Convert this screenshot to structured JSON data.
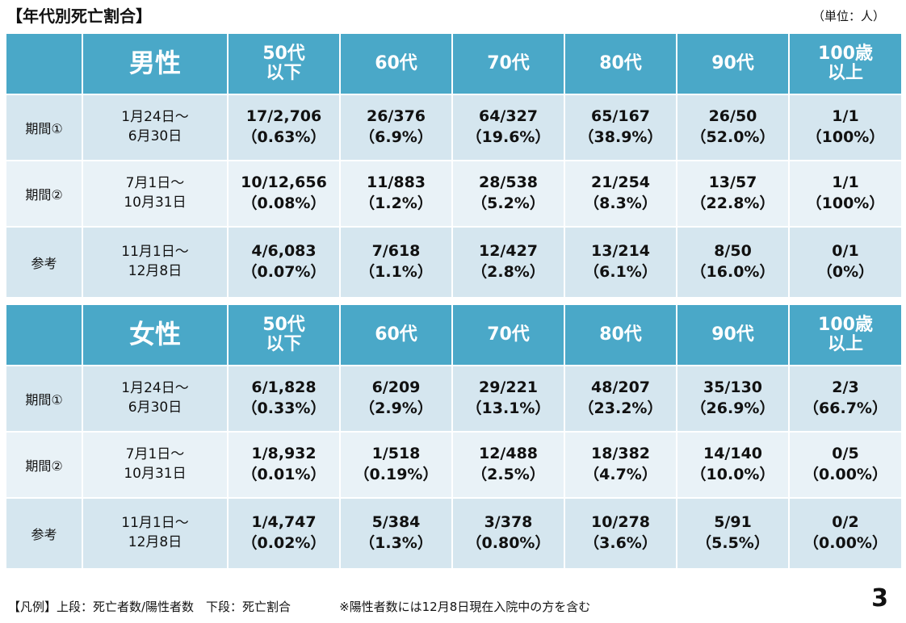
{
  "title": "【年代別死亡割合】",
  "unit": "（単位：人）",
  "headers": [
    "50代\n以下",
    "60代",
    "70代",
    "80代",
    "90代",
    "100歳\n以上"
  ],
  "sections": [
    {
      "gender": "男性",
      "rows": [
        {
          "label": "期間①",
          "period": "1月24日～\n6月30日",
          "cells": [
            "17/2,706\n（0.63%）",
            "26/376\n（6.9%）",
            "64/327\n（19.6%）",
            "65/167\n（38.9%）",
            "26/50\n（52.0%）",
            "1/1\n（100%）"
          ]
        },
        {
          "label": "期間②",
          "period": "7月1日～\n10月31日",
          "cells": [
            "10/12,656\n（0.08%）",
            "11/883\n（1.2%）",
            "28/538\n（5.2%）",
            "21/254\n（8.3%）",
            "13/57\n（22.8%）",
            "1/1\n（100%）"
          ]
        },
        {
          "label": "参考",
          "period": "11月1日～\n12月8日",
          "cells": [
            "4/6,083\n（0.07%）",
            "7/618\n（1.1%）",
            "12/427\n（2.8%）",
            "13/214\n（6.1%）",
            "8/50\n（16.0%）",
            "0/1\n（0%）"
          ]
        }
      ]
    },
    {
      "gender": "女性",
      "rows": [
        {
          "label": "期間①",
          "period": "1月24日～\n6月30日",
          "cells": [
            "6/1,828\n（0.33%）",
            "6/209\n（2.9%）",
            "29/221\n（13.1%）",
            "48/207\n（23.2%）",
            "35/130\n（26.9%）",
            "2/3\n（66.7%）"
          ]
        },
        {
          "label": "期間②",
          "period": "7月1日～\n10月31日",
          "cells": [
            "1/8,932\n（0.01%）",
            "1/518\n（0.19%）",
            "12/488\n（2.5%）",
            "18/382\n（4.7%）",
            "14/140\n（10.0%）",
            "0/5\n（0.00%）"
          ]
        },
        {
          "label": "参考",
          "period": "11月1日～\n12月8日",
          "cells": [
            "1/4,747\n（0.02%）",
            "5/384\n（1.3%）",
            "3/378\n（0.80%）",
            "10/278\n（3.6%）",
            "5/91\n（5.5%）",
            "0/2\n（0.00%）"
          ]
        }
      ]
    }
  ],
  "footer": {
    "legend": "【凡例】上段：死亡者数/陽性者数　下段：死亡割合",
    "note": "※陽性者数には12月8日現在入院中の方を含む"
  },
  "page_number": "3"
}
